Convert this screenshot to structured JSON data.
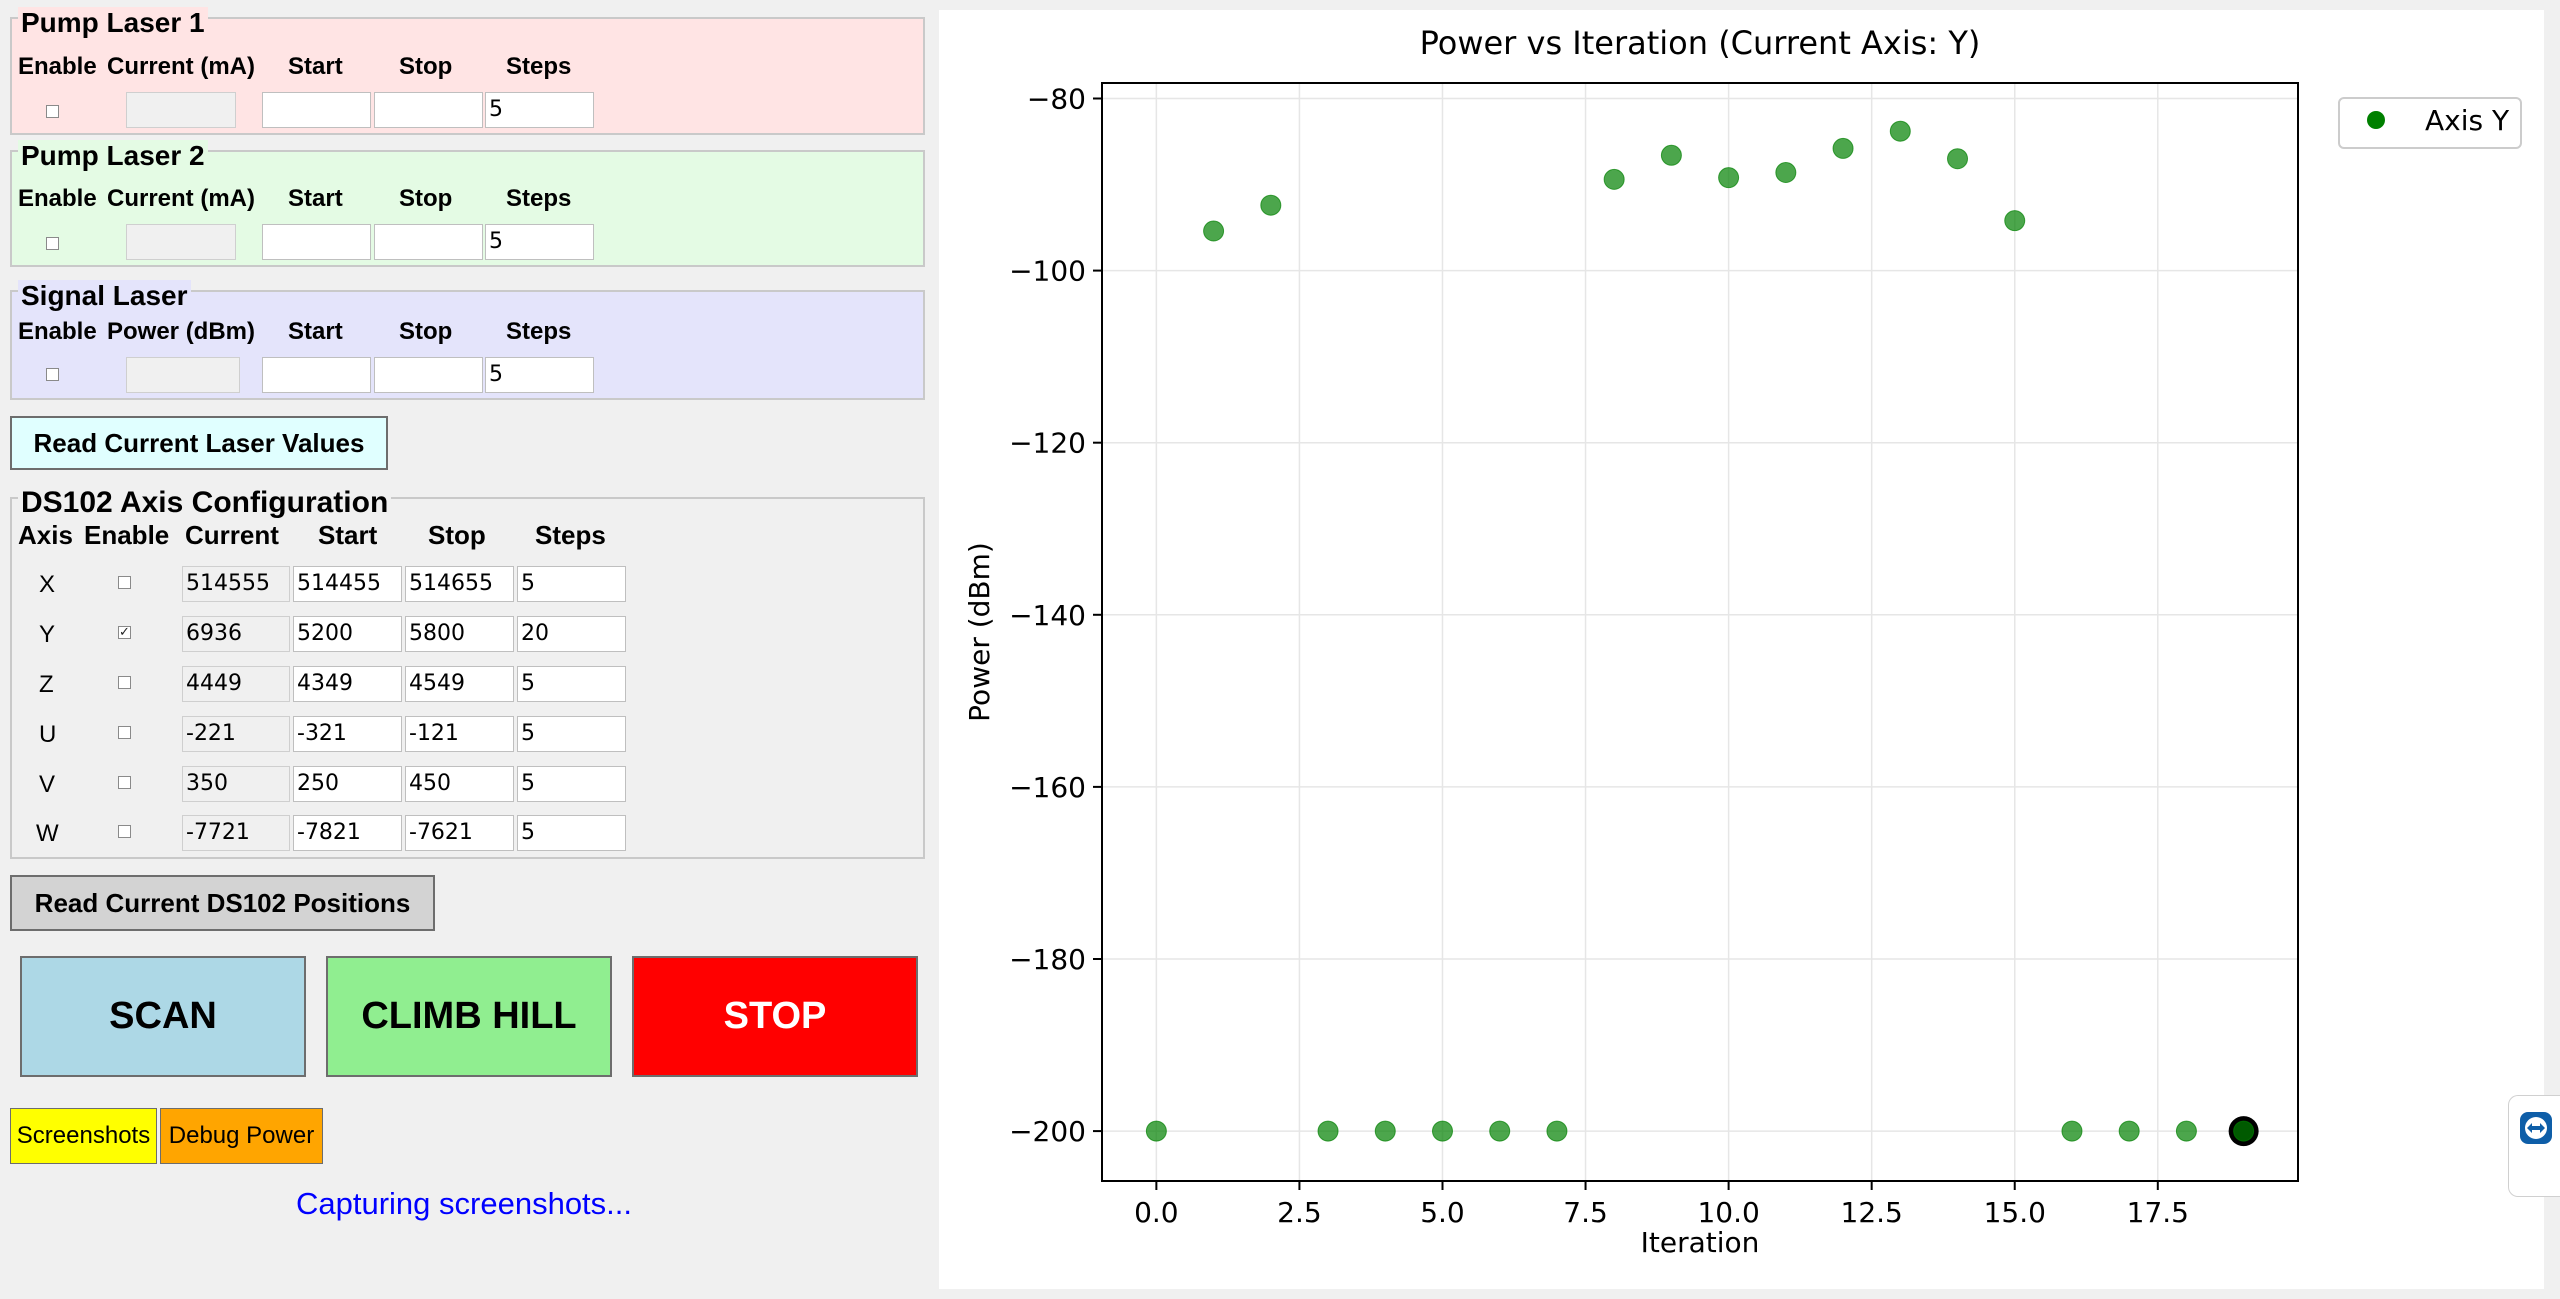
{
  "pump_laser_1": {
    "title": "Pump Laser 1",
    "headers": [
      "Enable",
      "Current (mA)",
      "Start",
      "Stop",
      "Steps"
    ],
    "enabled": false,
    "current": "",
    "start": "",
    "stop": "",
    "steps": "5"
  },
  "pump_laser_2": {
    "title": "Pump Laser 2",
    "headers": [
      "Enable",
      "Current (mA)",
      "Start",
      "Stop",
      "Steps"
    ],
    "enabled": false,
    "current": "",
    "start": "",
    "stop": "",
    "steps": "5"
  },
  "signal_laser": {
    "title": "Signal Laser",
    "headers": [
      "Enable",
      "Power (dBm)",
      "Start",
      "Stop",
      "Steps"
    ],
    "enabled": false,
    "power": "",
    "start": "",
    "stop": "",
    "steps": "5"
  },
  "read_laser_button": "Read Current Laser Values",
  "ds102": {
    "title": "DS102 Axis Configuration",
    "headers": [
      "Axis",
      "Enable",
      "Current",
      "Start",
      "Stop",
      "Steps"
    ],
    "axes": [
      {
        "axis": "X",
        "enabled": false,
        "current": "514555",
        "start": "514455",
        "stop": "514655",
        "steps": "5"
      },
      {
        "axis": "Y",
        "enabled": true,
        "current": "6936",
        "start": "5200",
        "stop": "5800",
        "steps": "20"
      },
      {
        "axis": "Z",
        "enabled": false,
        "current": "4449",
        "start": "4349",
        "stop": "4549",
        "steps": "5"
      },
      {
        "axis": "U",
        "enabled": false,
        "current": "-221",
        "start": "-321",
        "stop": "-121",
        "steps": "5"
      },
      {
        "axis": "V",
        "enabled": false,
        "current": "350",
        "start": "250",
        "stop": "450",
        "steps": "5"
      },
      {
        "axis": "W",
        "enabled": false,
        "current": "-7721",
        "start": "-7821",
        "stop": "-7621",
        "steps": "5"
      }
    ]
  },
  "read_ds102_button": "Read Current DS102 Positions",
  "actions": {
    "scan": "SCAN",
    "climb": "CLIMB HILL",
    "stop": "STOP",
    "scan_color": "#add8e6",
    "climb_color": "#90ee90",
    "stop_color": "#ff0000"
  },
  "screenshots_button": "Screenshots",
  "debug_power_button": "Debug Power",
  "status_text": "Capturing screenshots...",
  "status_color": "#0000ff",
  "chart_data": {
    "type": "scatter",
    "title": "Power vs Iteration (Current Axis: Y)",
    "xlabel": "Iteration",
    "ylabel": "Power (dBm)",
    "xlim": [
      -0.95,
      19.95
    ],
    "ylim": [
      -205.8,
      -78.2
    ],
    "xticks": [
      0.0,
      2.5,
      5.0,
      7.5,
      10.0,
      12.5,
      15.0,
      17.5
    ],
    "xtick_labels": [
      "0.0",
      "2.5",
      "5.0",
      "7.5",
      "10.0",
      "12.5",
      "15.0",
      "17.5"
    ],
    "yticks": [
      -200,
      -180,
      -160,
      -140,
      -120,
      -100,
      -80
    ],
    "ytick_labels": [
      "−200",
      "−180",
      "−160",
      "−140",
      "−120",
      "−100",
      "−80"
    ],
    "grid": true,
    "legend": "upper right, outside plot",
    "series": [
      {
        "name": "Axis Y",
        "color": "#008000",
        "x": [
          0,
          1,
          2,
          3,
          4,
          5,
          6,
          7,
          8,
          9,
          10,
          11,
          12,
          13,
          14,
          15,
          16,
          17,
          18,
          19
        ],
        "y": [
          -200,
          -95.4,
          -92.4,
          -200,
          -200,
          -200,
          -200,
          -200,
          -89.4,
          -86.6,
          -89.2,
          -88.6,
          -85.8,
          -83.8,
          -87.0,
          -94.2,
          -200,
          -200,
          -200,
          -200
        ]
      }
    ],
    "highlight_index": 19
  }
}
